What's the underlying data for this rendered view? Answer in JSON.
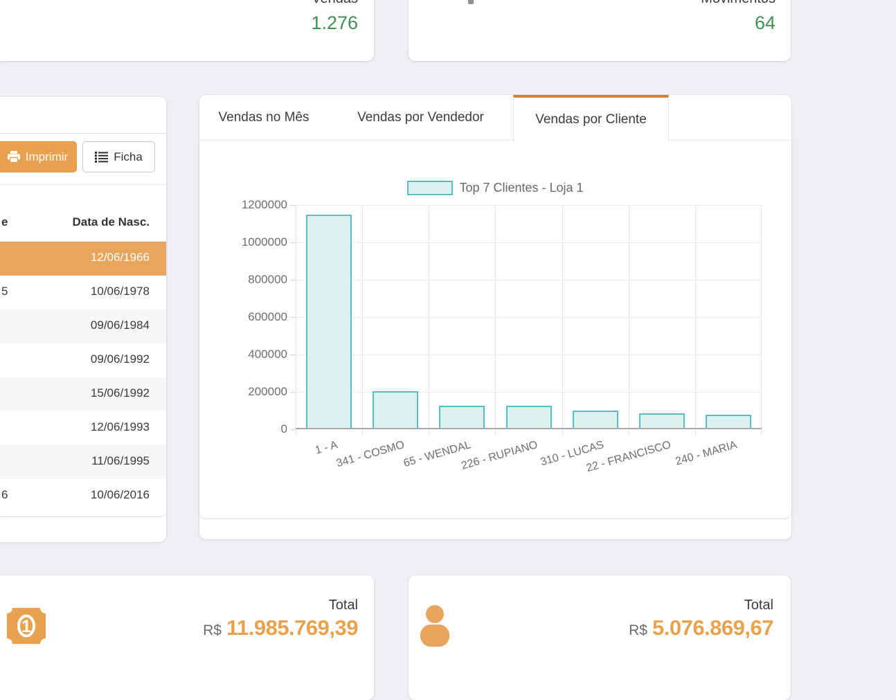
{
  "colors": {
    "accent_orange": "#e8a14e",
    "tab_active_border": "#cd862f",
    "value_green": "#3f9251",
    "bar_fill": "#def0ee",
    "bar_border": "#57bec3",
    "page_background": "#edeff3",
    "highlight_row": "#e9a55c"
  },
  "top_cards": {
    "vendas": {
      "label": "Vendas",
      "value": "1.276"
    },
    "movimentos": {
      "label": "Movimentos",
      "value": "64"
    }
  },
  "left_panel": {
    "print_label": "Imprimir",
    "ficha_label": "Ficha",
    "table": {
      "col1_header_partial": "e",
      "col2_header": "Data de Nasc.",
      "rows": [
        {
          "left": "",
          "date": "12/06/1966",
          "highlighted": true
        },
        {
          "left": "5",
          "date": "10/06/1978"
        },
        {
          "left": "",
          "date": "09/06/1984"
        },
        {
          "left": "",
          "date": "09/06/1992"
        },
        {
          "left": "",
          "date": "15/06/1992"
        },
        {
          "left": "",
          "date": "12/06/1993"
        },
        {
          "left": "",
          "date": "11/06/1995"
        },
        {
          "left": "6",
          "date": "10/06/2016"
        }
      ]
    }
  },
  "tabs": [
    {
      "label": "Vendas no Mês",
      "active": false
    },
    {
      "label": "Vendas por Vendedor",
      "active": false
    },
    {
      "label": "Vendas por Cliente",
      "active": true
    }
  ],
  "chart_data": {
    "type": "bar",
    "legend": "Top 7 Clientes - Loja 1",
    "categories": [
      "1 - A",
      "341 - COSMO",
      "65 - WENDAL",
      "226 - RUPIANO",
      "310 - LUCAS",
      "22 - FRANCISCO",
      "240 - MARIA"
    ],
    "values": [
      1148000,
      204000,
      127000,
      127000,
      100000,
      86000,
      78000
    ],
    "xlabel": "",
    "ylabel": "",
    "ylim": [
      0,
      1200000
    ],
    "yticks": [
      0,
      200000,
      400000,
      600000,
      800000,
      1000000,
      1200000
    ],
    "grid": true,
    "legend_position": "top"
  },
  "bottom_cards": {
    "sales": {
      "label": "Total",
      "currency": "R$",
      "value": "11.985.769,39",
      "icon": "money-bill-icon"
    },
    "customers": {
      "label": "Total",
      "currency": "R$",
      "value": "5.076.869,67",
      "icon": "person-icon"
    }
  }
}
